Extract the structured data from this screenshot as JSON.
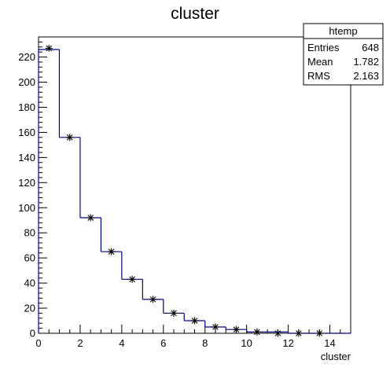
{
  "chart_data": {
    "type": "bar",
    "title": "cluster",
    "xlabel": "cluster",
    "ylabel": "",
    "xlim": [
      0,
      15
    ],
    "ylim": [
      0,
      236
    ],
    "xticks": [
      0,
      2,
      4,
      6,
      8,
      10,
      12,
      14
    ],
    "yticks": [
      0,
      20,
      40,
      60,
      80,
      100,
      120,
      140,
      160,
      180,
      200,
      220
    ],
    "bin_edges": [
      0,
      1,
      2,
      3,
      4,
      5,
      6,
      7,
      8,
      9,
      10,
      11,
      12,
      13,
      14,
      15
    ],
    "series": [
      {
        "style": "histogram",
        "values": [
          226,
          156,
          92,
          65,
          43,
          27,
          16,
          10,
          5,
          3,
          1,
          1,
          0,
          0,
          0
        ],
        "color": "#000080"
      },
      {
        "style": "markers",
        "x": [
          0.5,
          1.5,
          2.5,
          3.5,
          4.5,
          5.5,
          6.5,
          7.5,
          8.5,
          9.5,
          10.5,
          11.5,
          12.5,
          13.5
        ],
        "values": [
          227,
          156,
          92,
          65,
          43,
          27,
          16,
          10,
          5,
          3,
          1,
          0,
          0,
          0
        ],
        "color": "#000000"
      }
    ],
    "stats_box": {
      "name": "htemp",
      "rows": [
        {
          "label": "Entries",
          "value": "648"
        },
        {
          "label": "Mean",
          "value": "1.782"
        },
        {
          "label": "RMS",
          "value": "2.163"
        }
      ]
    }
  }
}
